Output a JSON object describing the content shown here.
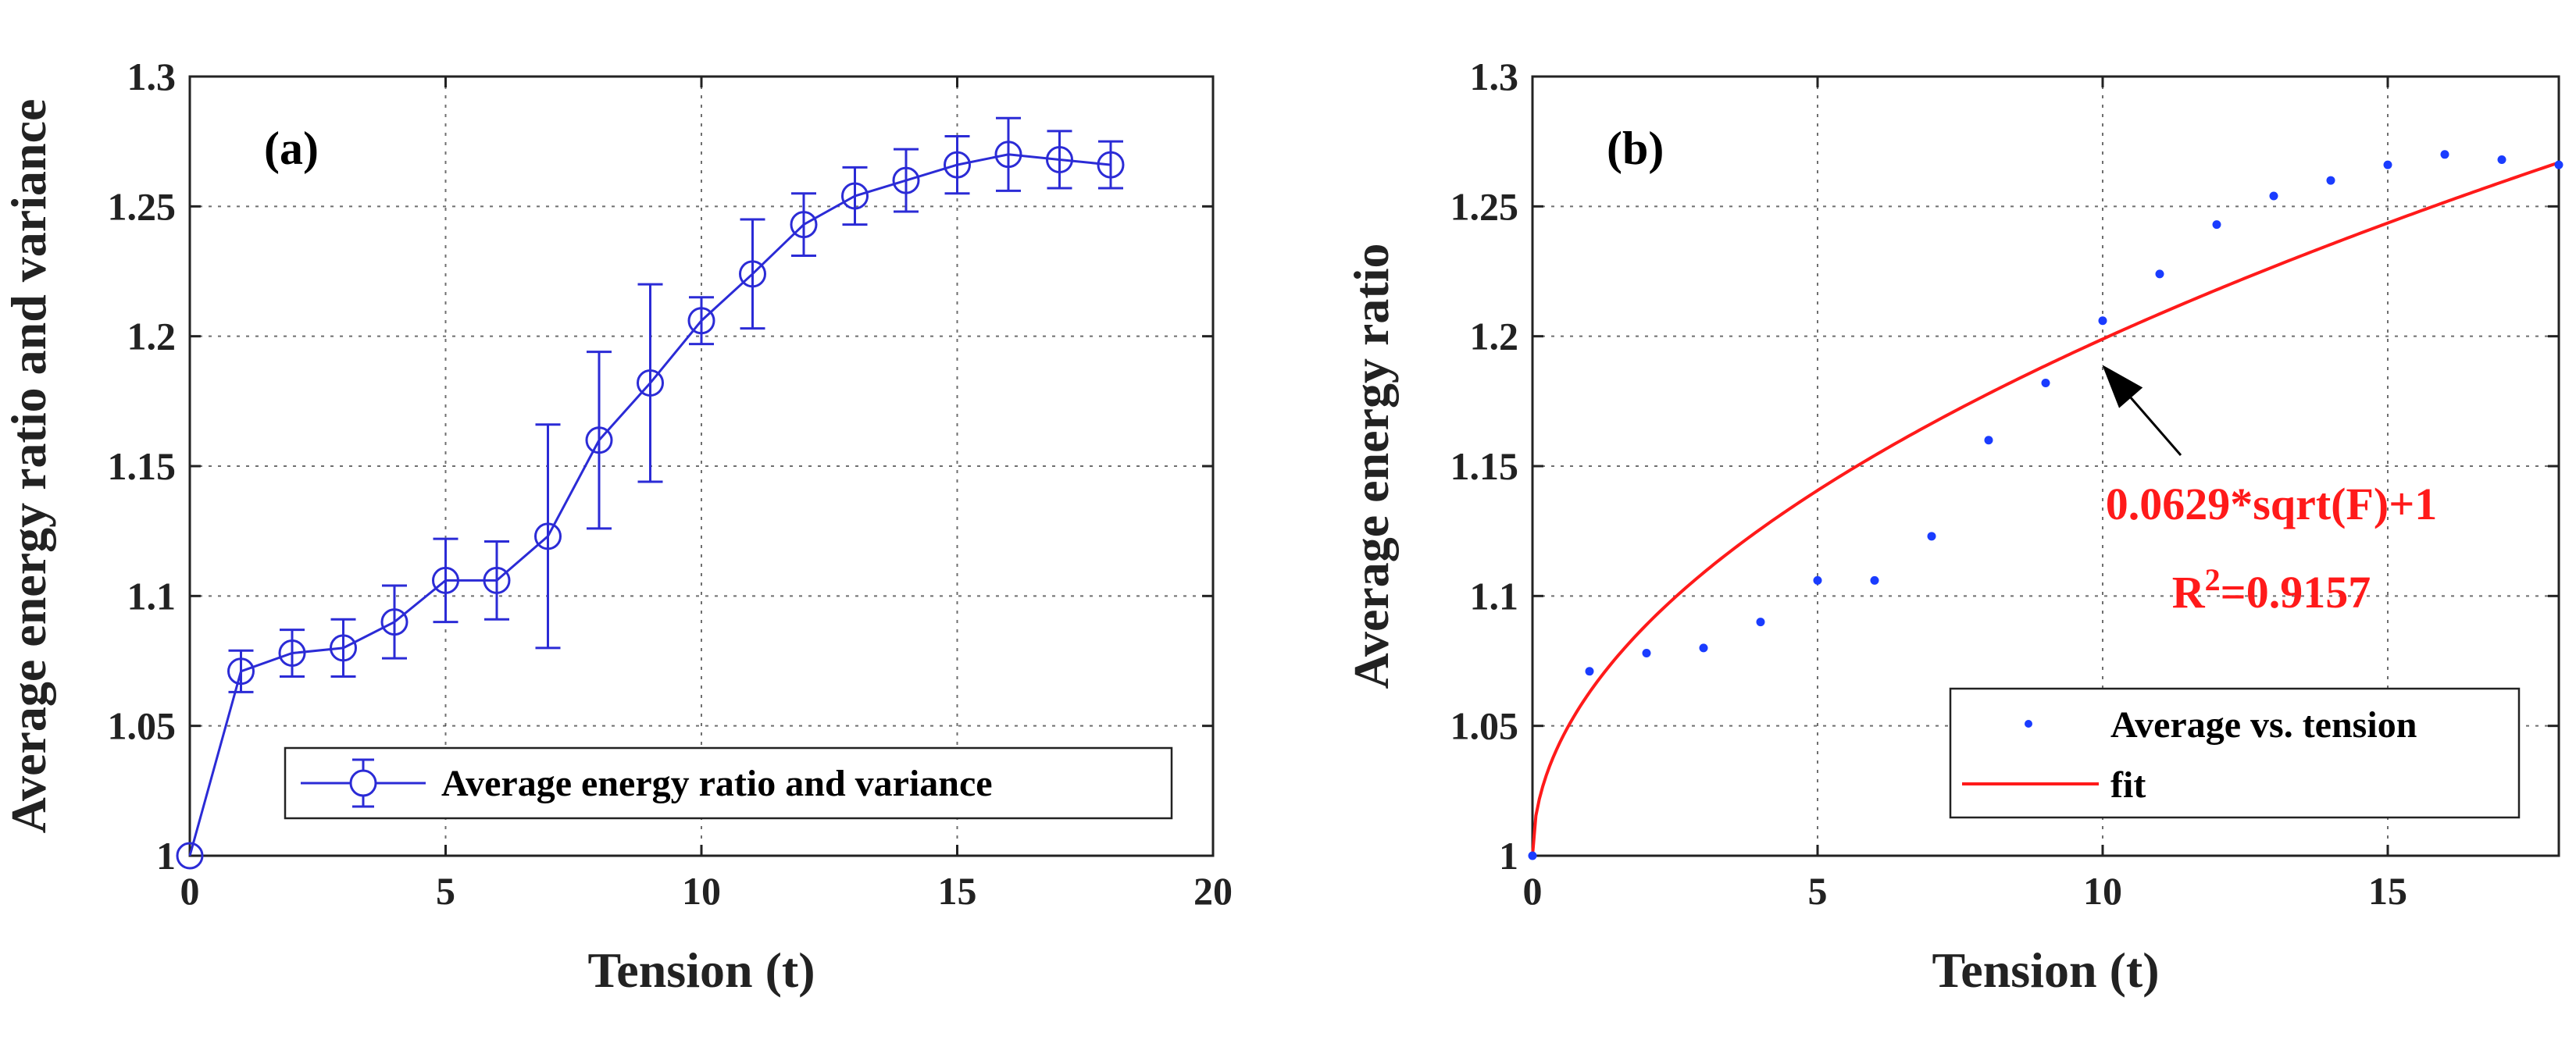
{
  "chart_data": [
    {
      "panel": "(a)",
      "type": "line",
      "title": "",
      "xlabel": "Tension (t)",
      "ylabel": "Average energy ratio and variance",
      "xlim": [
        0,
        20
      ],
      "ylim": [
        1,
        1.3
      ],
      "xticks": [
        0,
        5,
        10,
        15,
        20
      ],
      "yticks": [
        1,
        1.05,
        1.1,
        1.15,
        1.2,
        1.25,
        1.3
      ],
      "xtick_labels": [
        "0",
        "5",
        "10",
        "15",
        "20"
      ],
      "ytick_labels": [
        "1",
        "1.05",
        "1.1",
        "1.15",
        "1.2",
        "1.25",
        "1.3"
      ],
      "grid": true,
      "legend_location": "bottom-right",
      "series": [
        {
          "name": "Average energy ratio and variance",
          "color": "#2b2bd6",
          "marker": "circle",
          "x": [
            0,
            1,
            2,
            3,
            4,
            5,
            6,
            7,
            8,
            9,
            10,
            11,
            12,
            13,
            14,
            15,
            16,
            17,
            18
          ],
          "y": [
            1.0,
            1.071,
            1.078,
            1.08,
            1.09,
            1.106,
            1.106,
            1.123,
            1.16,
            1.182,
            1.206,
            1.224,
            1.243,
            1.254,
            1.26,
            1.266,
            1.27,
            1.268,
            1.266
          ],
          "error": [
            0.0,
            0.008,
            0.009,
            0.011,
            0.014,
            0.016,
            0.015,
            0.043,
            0.034,
            0.038,
            0.009,
            0.021,
            0.012,
            0.011,
            0.012,
            0.011,
            0.014,
            0.011,
            0.009
          ]
        }
      ]
    },
    {
      "panel": "(b)",
      "type": "scatter",
      "title": "",
      "xlabel": "Tension (t)",
      "ylabel": "Average energy ratio",
      "xlim": [
        0,
        18
      ],
      "ylim": [
        1,
        1.3
      ],
      "xticks": [
        0,
        5,
        10,
        15
      ],
      "yticks": [
        1,
        1.05,
        1.1,
        1.15,
        1.2,
        1.25,
        1.3
      ],
      "xtick_labels": [
        "0",
        "5",
        "10",
        "15"
      ],
      "ytick_labels": [
        "1",
        "1.05",
        "1.1",
        "1.15",
        "1.2",
        "1.25",
        "1.3"
      ],
      "grid": true,
      "legend_location": "bottom-right",
      "series": [
        {
          "name": "Average vs. tension",
          "color": "#1a3cff",
          "x": [
            0,
            1,
            2,
            3,
            4,
            5,
            6,
            7,
            8,
            9,
            10,
            11,
            12,
            13,
            14,
            15,
            16,
            17,
            18
          ],
          "y": [
            1.0,
            1.071,
            1.078,
            1.08,
            1.09,
            1.106,
            1.106,
            1.123,
            1.16,
            1.182,
            1.206,
            1.224,
            1.243,
            1.254,
            1.26,
            1.266,
            1.27,
            1.268,
            1.266
          ]
        },
        {
          "name": "fit",
          "color": "#ff1a1a",
          "function": "0.0629*sqrt(F)+1",
          "coef": 0.0629,
          "intercept": 1
        }
      ],
      "annotation": {
        "equation": "0.0629*sqrt(F)+1",
        "r_prefix": "R",
        "r_exp": "2",
        "r_value": "=0.9157",
        "arrow_target": [
          9.8,
          1.192
        ]
      }
    }
  ]
}
